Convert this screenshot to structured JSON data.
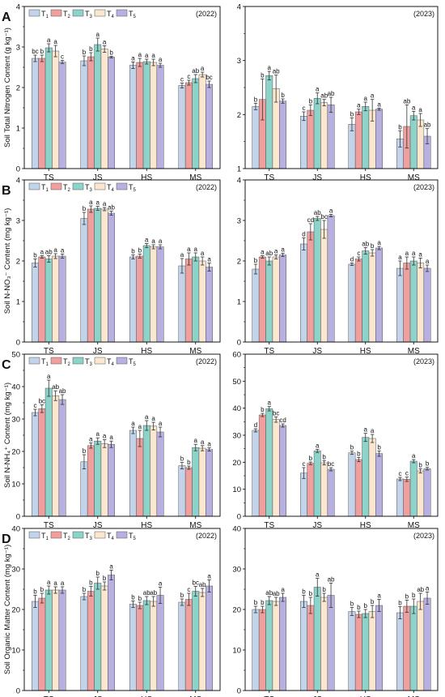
{
  "colors": {
    "series": [
      "#c2d3ea",
      "#ef9f9d",
      "#8cd3c9",
      "#fbe7cf",
      "#b7b0e0"
    ],
    "stroke": "#555555",
    "text": "#111111"
  },
  "series_labels": [
    {
      "base": "T",
      "sub": "1"
    },
    {
      "base": "T",
      "sub": "2"
    },
    {
      "base": "T",
      "sub": "3"
    },
    {
      "base": "T",
      "sub": "4"
    },
    {
      "base": "T",
      "sub": "5"
    }
  ],
  "panel_letters": [
    "A",
    "B",
    "C",
    "D"
  ],
  "chart_data": [
    {
      "type": "bar",
      "panel": "A",
      "year": "(2022)",
      "ylabel": "Soil Total Nitrogen Content (g kg⁻¹)",
      "ylim": [
        0,
        4
      ],
      "yticks": [
        0,
        1,
        2,
        3,
        4
      ],
      "categories": [
        "TS",
        "JS",
        "HS",
        "MS"
      ],
      "legend": true,
      "series": [
        {
          "name": "T1",
          "values": [
            2.72,
            2.66,
            2.55,
            2.05
          ],
          "errors": [
            0.08,
            0.12,
            0.08,
            0.06
          ],
          "letters": [
            "bc",
            "b",
            "a",
            "c"
          ]
        },
        {
          "name": "T2",
          "values": [
            2.72,
            2.76,
            2.62,
            2.12
          ],
          "errors": [
            0.08,
            0.1,
            0.1,
            0.06
          ],
          "letters": [
            "b",
            "b",
            "a",
            "c"
          ]
        },
        {
          "name": "T3",
          "values": [
            2.98,
            3.06,
            2.64,
            2.22
          ],
          "errors": [
            0.1,
            0.16,
            0.06,
            0.1
          ],
          "letters": [
            "a",
            "a",
            "a",
            "ab"
          ]
        },
        {
          "name": "T4",
          "values": [
            2.9,
            2.95,
            2.62,
            2.32
          ],
          "errors": [
            0.14,
            0.08,
            0.08,
            0.06
          ],
          "letters": [
            "a",
            "a",
            "a",
            "a"
          ]
        },
        {
          "name": "T5",
          "values": [
            2.63,
            2.75,
            2.55,
            2.08
          ],
          "errors": [
            0.04,
            0.02,
            0.05,
            0.08
          ],
          "letters": [
            "c",
            "b",
            "a",
            "bc"
          ]
        }
      ]
    },
    {
      "type": "bar",
      "panel": "A",
      "year": "(2023)",
      "ylabel": "",
      "ylim": [
        1,
        4
      ],
      "yticks": [
        1,
        2,
        3,
        4
      ],
      "categories": [
        "TS",
        "JS",
        "HS",
        "MS"
      ],
      "legend": false,
      "series": [
        {
          "name": "T1",
          "values": [
            2.15,
            1.97,
            1.82,
            1.55
          ],
          "errors": [
            0.06,
            0.08,
            0.12,
            0.15
          ],
          "letters": [
            "b",
            "c",
            "b",
            "b"
          ]
        },
        {
          "name": "T2",
          "values": [
            2.28,
            2.08,
            2.05,
            1.78
          ],
          "errors": [
            0.38,
            0.1,
            0.05,
            0.4
          ],
          "letters": [
            "b",
            "b",
            "a",
            "ab"
          ]
        },
        {
          "name": "T3",
          "values": [
            2.72,
            2.3,
            2.15,
            1.98
          ],
          "errors": [
            0.08,
            0.1,
            0.08,
            0.08
          ],
          "letters": [
            "a",
            "a",
            "a",
            "a"
          ]
        },
        {
          "name": "T4",
          "values": [
            2.48,
            2.22,
            2.08,
            1.9
          ],
          "errors": [
            0.25,
            0.06,
            0.2,
            0.12
          ],
          "letters": [
            "ab",
            "ab",
            "a",
            "a"
          ]
        },
        {
          "name": "T5",
          "values": [
            2.25,
            2.18,
            2.1,
            1.6
          ],
          "errors": [
            0.04,
            0.14,
            0.02,
            0.14
          ],
          "letters": [
            "b",
            "ab",
            "a",
            "ab"
          ]
        }
      ]
    },
    {
      "type": "bar",
      "panel": "B",
      "year": "(2022)",
      "ylabel": "Soil N-NO₃⁻ Content (mg kg⁻¹)",
      "ylim": [
        0,
        4
      ],
      "yticks": [
        0,
        1,
        2,
        3,
        4
      ],
      "categories": [
        "TS",
        "JS",
        "HS",
        "MS"
      ],
      "legend": true,
      "series": [
        {
          "name": "T1",
          "values": [
            1.95,
            3.05,
            2.1,
            1.88
          ],
          "errors": [
            0.1,
            0.15,
            0.05,
            0.18
          ],
          "letters": [
            "b",
            "b",
            "b",
            "a"
          ]
        },
        {
          "name": "T2",
          "values": [
            2.1,
            3.28,
            2.12,
            2.05
          ],
          "errors": [
            0.03,
            0.08,
            0.05,
            0.15
          ],
          "letters": [
            "a",
            "a",
            "b",
            "a"
          ]
        },
        {
          "name": "T3",
          "values": [
            2.05,
            3.3,
            2.38,
            2.1
          ],
          "errors": [
            0.08,
            0.05,
            0.05,
            0.1
          ],
          "letters": [
            "ab",
            "a",
            "a",
            "a"
          ]
        },
        {
          "name": "T4",
          "values": [
            2.12,
            3.28,
            2.35,
            2.0
          ],
          "errors": [
            0.06,
            0.04,
            0.05,
            0.1
          ],
          "letters": [
            "a",
            "a",
            "a",
            "a"
          ]
        },
        {
          "name": "T5",
          "values": [
            2.12,
            3.18,
            2.35,
            1.85
          ],
          "errors": [
            0.05,
            0.05,
            0.05,
            0.1
          ],
          "letters": [
            "a",
            "ab",
            "a",
            "a"
          ]
        }
      ]
    },
    {
      "type": "bar",
      "panel": "B",
      "year": "(2023)",
      "ylabel": "",
      "ylim": [
        0,
        4
      ],
      "yticks": [
        0,
        1,
        2,
        3,
        4
      ],
      "categories": [
        "TS",
        "JS",
        "HS",
        "MS"
      ],
      "legend": false,
      "series": [
        {
          "name": "T1",
          "values": [
            1.8,
            2.42,
            1.92,
            1.82
          ],
          "errors": [
            0.12,
            0.15,
            0.03,
            0.18
          ],
          "letters": [
            "b",
            "d",
            "d",
            "a"
          ]
        },
        {
          "name": "T2",
          "values": [
            2.1,
            2.72,
            2.05,
            1.95
          ],
          "errors": [
            0.03,
            0.2,
            0.05,
            0.15
          ],
          "letters": [
            "a",
            "cd",
            "c",
            "a"
          ]
        },
        {
          "name": "T3",
          "values": [
            2.0,
            3.05,
            2.25,
            2.0
          ],
          "errors": [
            0.1,
            0.05,
            0.08,
            0.1
          ],
          "letters": [
            "ab",
            "ab",
            "ab",
            "a"
          ]
        },
        {
          "name": "T4",
          "values": [
            2.1,
            2.78,
            2.2,
            1.95
          ],
          "errors": [
            0.05,
            0.22,
            0.08,
            0.12
          ],
          "letters": [
            "a",
            "bc",
            "b",
            "a"
          ]
        },
        {
          "name": "T5",
          "values": [
            2.15,
            3.12,
            2.32,
            1.82
          ],
          "errors": [
            0.04,
            0.03,
            0.04,
            0.08
          ],
          "letters": [
            "a",
            "a",
            "a",
            "a"
          ]
        }
      ]
    },
    {
      "type": "bar",
      "panel": "C",
      "year": "(2022)",
      "ylabel": "Soil N-NH₄⁺ Content (mg kg⁻¹)",
      "ylim": [
        0,
        50
      ],
      "yticks": [
        0,
        10,
        20,
        30,
        40,
        50
      ],
      "categories": [
        "TS",
        "JS",
        "HS",
        "MS"
      ],
      "legend": true,
      "series": [
        {
          "name": "T1",
          "values": [
            32.0,
            16.8,
            26.5,
            15.6
          ],
          "errors": [
            1.0,
            2.2,
            1.0,
            1.0
          ],
          "letters": [
            "c",
            "b",
            "a",
            "b"
          ]
        },
        {
          "name": "T2",
          "values": [
            33.2,
            21.8,
            24.0,
            15.0
          ],
          "errors": [
            1.2,
            0.8,
            2.5,
            0.5
          ],
          "letters": [
            "bc",
            "a",
            "a",
            "b"
          ]
        },
        {
          "name": "T3",
          "values": [
            39.5,
            23.2,
            28.0,
            21.2
          ],
          "errors": [
            2.5,
            1.0,
            1.5,
            1.0
          ],
          "letters": [
            "a",
            "a",
            "a",
            "a"
          ]
        },
        {
          "name": "T4",
          "values": [
            37.2,
            22.4,
            27.8,
            21.0
          ],
          "errors": [
            1.5,
            1.2,
            1.2,
            0.8
          ],
          "letters": [
            "ab",
            "a",
            "a",
            "a"
          ]
        },
        {
          "name": "T5",
          "values": [
            36.0,
            22.2,
            26.0,
            20.6
          ],
          "errors": [
            1.5,
            1.0,
            1.5,
            0.5
          ],
          "letters": [
            "ab",
            "a",
            "a",
            "a"
          ]
        }
      ]
    },
    {
      "type": "bar",
      "panel": "C",
      "year": "(2023)",
      "ylabel": "",
      "ylim": [
        0,
        60
      ],
      "yticks": [
        0,
        10,
        20,
        30,
        40,
        50,
        60
      ],
      "categories": [
        "TS",
        "JS",
        "HS",
        "MS"
      ],
      "legend": false,
      "series": [
        {
          "name": "T1",
          "values": [
            31.8,
            16.0,
            23.5,
            13.8
          ],
          "errors": [
            0.6,
            2.0,
            0.6,
            0.6
          ],
          "letters": [
            "d",
            "c",
            "b",
            "c"
          ]
        },
        {
          "name": "T2",
          "values": [
            37.5,
            19.6,
            21.0,
            13.7
          ],
          "errors": [
            0.6,
            0.5,
            0.8,
            0.8
          ],
          "letters": [
            "b",
            "b",
            "b",
            "c"
          ]
        },
        {
          "name": "T3",
          "values": [
            39.8,
            24.2,
            29.2,
            20.4
          ],
          "errors": [
            0.8,
            0.6,
            1.5,
            0.6
          ],
          "letters": [
            "a",
            "a",
            "a",
            "a"
          ]
        },
        {
          "name": "T4",
          "values": [
            35.8,
            19.8,
            28.8,
            16.8
          ],
          "errors": [
            1.0,
            0.8,
            1.5,
            0.8
          ],
          "letters": [
            "bc",
            "b",
            "a",
            "b"
          ]
        },
        {
          "name": "T5",
          "values": [
            33.6,
            17.4,
            23.2,
            17.6
          ],
          "errors": [
            0.6,
            0.6,
            1.0,
            0.5
          ],
          "letters": [
            "cd",
            "bc",
            "b",
            "b"
          ]
        }
      ]
    },
    {
      "type": "bar",
      "panel": "D",
      "year": "(2022)",
      "ylabel": "Soil Organic Matter Content (mg kg⁻¹)",
      "ylim": [
        0,
        40
      ],
      "yticks": [
        0,
        10,
        20,
        30,
        40
      ],
      "categories": [
        "TS",
        "JS",
        "HS",
        "MS"
      ],
      "legend": true,
      "series": [
        {
          "name": "T1",
          "values": [
            22.0,
            23.2,
            21.3,
            21.8
          ],
          "errors": [
            1.5,
            0.8,
            0.8,
            0.8
          ],
          "letters": [
            "b",
            "b",
            "b",
            "b"
          ]
        },
        {
          "name": "T2",
          "values": [
            22.8,
            24.5,
            21.0,
            22.5
          ],
          "errors": [
            1.2,
            1.2,
            0.8,
            1.5
          ],
          "letters": [
            "b",
            "b",
            "b",
            "c"
          ]
        },
        {
          "name": "T3",
          "values": [
            24.8,
            26.5,
            22.2,
            24.5
          ],
          "errors": [
            1.0,
            1.5,
            1.0,
            1.2
          ],
          "letters": [
            "a",
            "b",
            "ab",
            "bc"
          ]
        },
        {
          "name": "T4",
          "values": [
            24.8,
            25.8,
            22.0,
            24.2
          ],
          "errors": [
            0.8,
            1.0,
            1.2,
            1.0
          ],
          "letters": [
            "a",
            "b",
            "ab",
            "ab"
          ]
        },
        {
          "name": "T5",
          "values": [
            24.8,
            28.5,
            23.5,
            25.8
          ],
          "errors": [
            0.8,
            1.2,
            2.0,
            1.5
          ],
          "letters": [
            "a",
            "a",
            "a",
            "a"
          ]
        }
      ]
    },
    {
      "type": "bar",
      "panel": "D",
      "year": "(2023)",
      "ylabel": "",
      "ylim": [
        0,
        40
      ],
      "yticks": [
        0,
        10,
        20,
        30,
        40
      ],
      "categories": [
        "TS",
        "JS",
        "HS",
        "MS"
      ],
      "legend": false,
      "series": [
        {
          "name": "T1",
          "values": [
            20.0,
            22.0,
            19.5,
            19.2
          ],
          "errors": [
            0.8,
            1.5,
            1.0,
            1.5
          ],
          "letters": [
            "b",
            "b",
            "b",
            "b"
          ]
        },
        {
          "name": "T2",
          "values": [
            20.0,
            21.0,
            18.8,
            20.8
          ],
          "errors": [
            0.8,
            2.0,
            0.8,
            1.5
          ],
          "letters": [
            "b",
            "b",
            "b",
            "b"
          ]
        },
        {
          "name": "T3",
          "values": [
            22.2,
            25.5,
            19.0,
            20.8
          ],
          "errors": [
            1.0,
            2.2,
            1.0,
            1.8
          ],
          "letters": [
            "ab",
            "a",
            "b",
            "b"
          ]
        },
        {
          "name": "T4",
          "values": [
            22.0,
            23.0,
            19.5,
            22.0
          ],
          "errors": [
            1.0,
            1.0,
            1.5,
            2.0
          ],
          "letters": [
            "ab",
            "b",
            "b",
            "ab"
          ]
        },
        {
          "name": "T5",
          "values": [
            23.0,
            23.5,
            21.0,
            22.8
          ],
          "errors": [
            1.0,
            3.0,
            1.5,
            1.5
          ],
          "letters": [
            "a",
            "ab",
            "a",
            "a"
          ]
        }
      ]
    }
  ]
}
